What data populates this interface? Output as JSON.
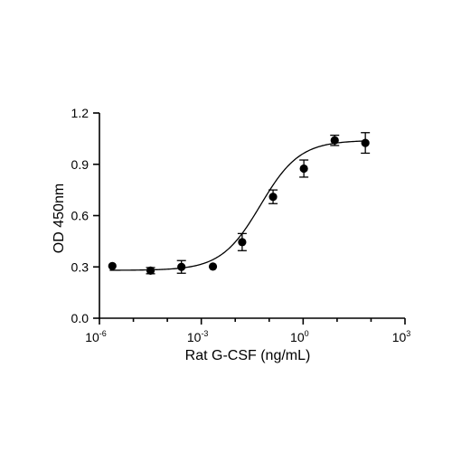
{
  "chart_data": {
    "type": "scatter",
    "title": "",
    "xlabel": "Rat G-CSF (ng/mL)",
    "ylabel": "OD 450nm",
    "x_scale": "log10",
    "xlim": [
      1e-06,
      1000
    ],
    "ylim": [
      0,
      1.2
    ],
    "grid": false,
    "x_ticks": [
      {
        "base": "10",
        "exp": "-6",
        "value": 1e-06
      },
      {
        "base": "10",
        "exp": "-3",
        "value": 0.001
      },
      {
        "base": "10",
        "exp": "0",
        "value": 1
      },
      {
        "base": "10",
        "exp": "3",
        "value": 1000
      }
    ],
    "y_ticks": [
      {
        "label": "0.0",
        "value": 0.0
      },
      {
        "label": "0.3",
        "value": 0.3
      },
      {
        "label": "0.6",
        "value": 0.6
      },
      {
        "label": "0.9",
        "value": 0.9
      },
      {
        "label": "1.2",
        "value": 1.2
      }
    ],
    "series": [
      {
        "points": [
          {
            "x": 2.4e-06,
            "y": 0.305,
            "err": 0.0
          },
          {
            "x": 3.2e-05,
            "y": 0.278,
            "err": 0.018
          },
          {
            "x": 0.00026,
            "y": 0.3,
            "err": 0.037
          },
          {
            "x": 0.0022,
            "y": 0.302,
            "err": 0.0
          },
          {
            "x": 0.016,
            "y": 0.445,
            "err": 0.05
          },
          {
            "x": 0.13,
            "y": 0.71,
            "err": 0.04
          },
          {
            "x": 1.05,
            "y": 0.875,
            "err": 0.05
          },
          {
            "x": 8.5,
            "y": 1.04,
            "err": 0.03
          },
          {
            "x": 68,
            "y": 1.025,
            "err": 0.06
          }
        ],
        "fit": {
          "model": "4PL",
          "bottom": 0.28,
          "top": 1.04,
          "ec50": 0.055,
          "hill": 0.75
        }
      }
    ]
  }
}
